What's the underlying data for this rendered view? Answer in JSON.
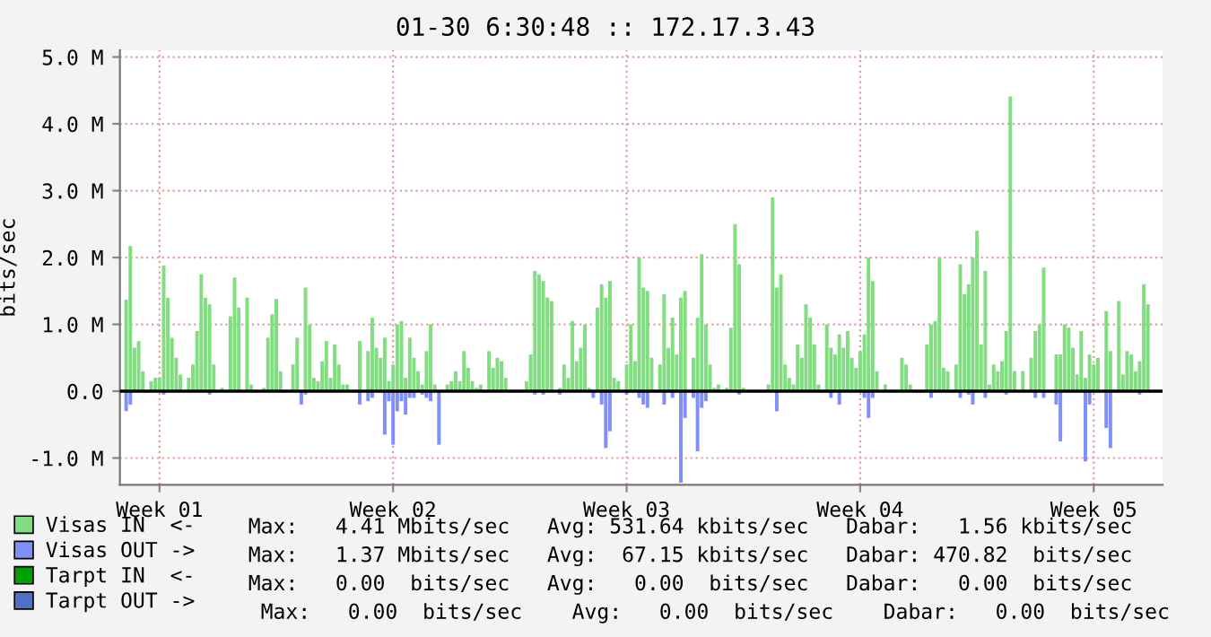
{
  "chart_data": {
    "type": "bar",
    "title": "01-30 6:30:48 :: 172.17.3.43",
    "ylabel": "bits/sec",
    "categories": [
      null,
      null,
      null,
      null,
      null,
      null,
      null,
      null,
      null,
      "Week 01",
      null,
      null,
      null,
      null,
      null,
      null,
      null,
      null,
      null,
      null,
      null,
      null,
      null,
      null,
      null,
      null,
      null,
      null,
      null,
      null,
      null,
      null,
      null,
      null,
      null,
      null,
      null,
      null,
      null,
      null,
      null,
      null,
      null,
      null,
      null,
      null,
      null,
      null,
      null,
      null,
      null,
      null,
      null,
      null,
      null,
      null,
      null,
      null,
      null,
      null,
      null,
      null,
      null,
      null,
      null,
      "Week 02",
      null,
      null,
      null,
      null,
      null,
      null,
      null,
      null,
      null,
      null,
      null,
      null,
      null,
      null,
      null,
      null,
      null,
      null,
      null,
      null,
      null,
      null,
      null,
      null,
      null,
      null,
      null,
      null,
      null,
      null,
      null,
      null,
      null,
      null,
      null,
      null,
      null,
      null,
      null,
      null,
      null,
      null,
      null,
      null,
      null,
      null,
      null,
      null,
      null,
      null,
      null,
      null,
      null,
      null,
      null,
      "Week 03",
      null,
      null,
      null,
      null,
      null,
      null,
      null,
      null,
      null,
      null,
      null,
      null,
      null,
      null,
      null,
      null,
      null,
      null,
      null,
      null,
      null,
      null,
      null,
      null,
      null,
      null,
      null,
      null,
      null,
      null,
      null,
      null,
      null,
      null,
      null,
      null,
      null,
      null,
      null,
      null,
      null,
      null,
      null,
      null,
      null,
      null,
      null,
      null,
      null,
      null,
      null,
      null,
      null,
      null,
      null,
      "Week 04",
      null,
      null,
      null,
      null,
      null,
      null,
      null,
      null,
      null,
      null,
      null,
      null,
      null,
      null,
      null,
      null,
      null,
      null,
      null,
      null,
      null,
      null,
      null,
      null,
      null,
      null,
      null,
      null,
      null,
      null,
      null,
      null,
      null,
      null,
      null,
      null,
      null,
      null,
      null,
      null,
      null,
      null,
      null,
      null,
      null,
      null,
      null,
      null,
      null,
      null,
      null,
      null,
      null,
      null,
      null,
      "Week 05",
      null,
      null,
      null,
      null,
      null,
      null,
      null,
      null,
      null,
      null,
      null,
      null,
      null,
      null,
      null,
      null
    ],
    "ylim": [
      -1.4,
      5.1
    ],
    "yticks": [
      {
        "value": -1,
        "label": "-1.0 M"
      },
      {
        "value": 0,
        "label": "0.0"
      },
      {
        "value": 1,
        "label": "1.0 M"
      },
      {
        "value": 2,
        "label": "2.0 M"
      },
      {
        "value": 3,
        "label": "3.0 M"
      },
      {
        "value": 4,
        "label": "4.0 M"
      },
      {
        "value": 5,
        "label": "5.0 M"
      }
    ],
    "grid": true,
    "legend": "bottom left",
    "ref_lines": [
      {
        "axis": "y",
        "value": 0,
        "color": "#000000"
      }
    ],
    "series": [
      {
        "name": "Visas IN  <-",
        "color": "#80dd80",
        "values": [
          null,
          1.37,
          2.17,
          0.65,
          0.75,
          0.3,
          null,
          0.15,
          0.2,
          0.2,
          1.88,
          1.4,
          0.8,
          0.5,
          0.25,
          null,
          0.2,
          0.4,
          0.9,
          1.75,
          1.4,
          1.3,
          0.4,
          null,
          0.05,
          null,
          1.12,
          1.7,
          1.25,
          null,
          1.4,
          0.1,
          null,
          null,
          0.05,
          0.8,
          1.15,
          1.38,
          0.3,
          null,
          null,
          0.4,
          0.8,
          null,
          1.55,
          1.0,
          0.2,
          0.15,
          0.45,
          0.75,
          0.2,
          0.7,
          0.4,
          0.1,
          0.1,
          null,
          null,
          0.75,
          null,
          0.6,
          1.1,
          0.65,
          0.5,
          0.8,
          0.15,
          0.4,
          1.0,
          1.05,
          0.2,
          0.8,
          0.5,
          0.3,
          0.1,
          0.6,
          1.0,
          0.1,
          null,
          null,
          0.1,
          0.15,
          0.3,
          0.15,
          0.6,
          0.35,
          0.15,
          0.05,
          0.1,
          null,
          0.6,
          0.35,
          0.5,
          0.45,
          0.2,
          null,
          null,
          null,
          null,
          0.15,
          0.55,
          1.8,
          1.75,
          1.65,
          1.4,
          1.35,
          null,
          0.05,
          0.4,
          0.2,
          1.05,
          0.45,
          0.65,
          1.0,
          0.05,
          null,
          1.25,
          1.6,
          1.4,
          1.65,
          0.2,
          0.15,
          null,
          0.4,
          1.0,
          0.45,
          2.0,
          1.55,
          1.5,
          0.5,
          null,
          0.4,
          1.45,
          0.65,
          1.1,
          0.55,
          1.4,
          1.5,
          null,
          0.5,
          1.1,
          2.05,
          1.0,
          0.4,
          0.05,
          0.1,
          null,
          0.05,
          0.95,
          2.5,
          1.9,
          0.05,
          null,
          null,
          null,
          null,
          null,
          0.1,
          2.9,
          1.55,
          1.75,
          0.4,
          0.2,
          0.1,
          0.7,
          0.5,
          1.3,
          1.1,
          0.7,
          0.1,
          null,
          1.0,
          0.65,
          0.55,
          0.85,
          0.65,
          0.9,
          0.5,
          0.35,
          0.6,
          0.85,
          2.0,
          1.65,
          0.3,
          null,
          0.1,
          null,
          null,
          null,
          0.5,
          0.4,
          0.1,
          null,
          null,
          null,
          0.7,
          1.0,
          1.05,
          2.0,
          0.35,
          0.3,
          null,
          0.4,
          1.9,
          1.45,
          1.6,
          2.0,
          2.4,
          0.7,
          1.8,
          0.1,
          0.4,
          0.3,
          0.45,
          0.9,
          4.41,
          0.3,
          null,
          0.3,
          null,
          0.5,
          0.9,
          1.0,
          1.85,
          null,
          null,
          0.55,
          0.55,
          1.0,
          0.95,
          0.65,
          0.25,
          0.9,
          0.2,
          0.55,
          0.4,
          0.5,
          null,
          1.2,
          0.6,
          null,
          1.35,
          0.25,
          0.6,
          0.55,
          0.3,
          0.45,
          1.6,
          1.3,
          null,
          null,
          null
        ]
      },
      {
        "name": "Visas OUT ->",
        "color": "#8090f8",
        "values": [
          null,
          -0.3,
          -0.2,
          null,
          null,
          null,
          null,
          null,
          null,
          null,
          -0.05,
          null,
          null,
          null,
          null,
          null,
          null,
          null,
          null,
          null,
          null,
          -0.05,
          null,
          null,
          null,
          null,
          null,
          null,
          null,
          null,
          null,
          null,
          null,
          null,
          null,
          null,
          null,
          null,
          null,
          null,
          null,
          null,
          null,
          -0.2,
          -0.05,
          null,
          null,
          null,
          null,
          null,
          null,
          null,
          null,
          null,
          null,
          null,
          null,
          -0.2,
          null,
          -0.15,
          -0.1,
          null,
          null,
          -0.65,
          -0.15,
          -0.8,
          -0.3,
          -0.15,
          -0.35,
          -0.1,
          -0.1,
          null,
          -0.05,
          -0.1,
          -0.15,
          null,
          -0.8,
          null,
          null,
          null,
          null,
          null,
          null,
          null,
          null,
          null,
          null,
          null,
          null,
          null,
          null,
          null,
          null,
          null,
          null,
          null,
          null,
          null,
          null,
          -0.05,
          null,
          -0.05,
          null,
          null,
          null,
          -0.05,
          null,
          null,
          null,
          null,
          null,
          null,
          null,
          -0.1,
          null,
          -0.2,
          -0.85,
          -0.6,
          null,
          null,
          null,
          -0.05,
          null,
          null,
          -0.1,
          -0.2,
          -0.25,
          null,
          null,
          null,
          -0.2,
          null,
          -0.1,
          null,
          -1.37,
          -0.4,
          null,
          -0.1,
          -0.9,
          -0.25,
          -0.15,
          null,
          null,
          null,
          null,
          null,
          null,
          null,
          -0.05,
          null,
          null,
          null,
          null,
          null,
          null,
          null,
          null,
          -0.3,
          null,
          null,
          null,
          null,
          null,
          null,
          null,
          null,
          null,
          null,
          null,
          null,
          -0.1,
          null,
          -0.2,
          null,
          null,
          null,
          null,
          null,
          -0.1,
          -0.4,
          -0.1,
          null,
          null,
          null,
          null,
          null,
          null,
          null,
          null,
          null,
          null,
          null,
          null,
          null,
          -0.1,
          null,
          null,
          null,
          null,
          null,
          null,
          -0.1,
          null,
          -0.05,
          -0.2,
          null,
          null,
          -0.1,
          null,
          null,
          null,
          null,
          -0.05,
          null,
          null,
          null,
          null,
          null,
          null,
          -0.1,
          null,
          -0.1,
          null,
          null,
          -0.2,
          -0.75,
          null,
          null,
          null,
          null,
          null,
          -1.05,
          -0.2,
          null,
          null,
          null,
          -0.55,
          -0.85,
          null,
          null,
          null,
          null,
          null,
          null,
          -0.05,
          null,
          null,
          null,
          null,
          null
        ]
      },
      {
        "name": "Tarpt IN  <-",
        "color": "#00a000",
        "values": [
          0,
          0,
          0,
          0,
          0,
          0,
          0,
          0,
          0,
          0,
          0,
          0,
          0,
          0,
          0,
          0,
          0,
          0,
          0,
          0,
          0,
          0,
          0,
          0,
          0,
          0,
          0,
          0,
          0,
          0,
          0,
          0,
          0,
          0,
          0,
          0,
          0,
          0,
          0,
          0,
          0,
          0,
          0,
          0,
          0,
          0,
          0,
          0,
          0,
          0,
          0,
          0,
          0,
          0,
          0,
          0,
          0,
          0,
          0,
          0,
          0,
          0,
          0,
          0,
          0,
          0,
          0,
          0,
          0,
          0,
          0,
          0,
          0,
          0,
          0,
          0,
          0,
          0,
          0,
          0,
          0,
          0,
          0,
          0,
          0,
          0,
          0,
          0,
          0,
          0,
          0,
          0,
          0,
          0,
          0,
          0,
          0,
          0,
          0,
          0,
          0,
          0,
          0,
          0,
          0,
          0,
          0,
          0,
          0,
          0,
          0,
          0,
          0,
          0,
          0,
          0,
          0,
          0,
          0,
          0,
          0,
          0,
          0,
          0,
          0,
          0,
          0,
          0,
          0,
          0,
          0,
          0,
          0,
          0,
          0,
          0,
          0,
          0,
          0,
          0,
          0,
          0,
          0,
          0,
          0,
          0,
          0,
          0,
          0,
          0,
          0,
          0,
          0,
          0,
          0,
          0,
          0,
          0,
          0,
          0,
          0,
          0,
          0,
          0,
          0,
          0,
          0,
          0,
          0,
          0,
          0,
          0,
          0,
          0,
          0,
          0,
          0,
          0,
          0,
          0,
          0,
          0,
          0,
          0,
          0,
          0,
          0,
          0,
          0,
          0,
          0,
          0,
          0,
          0,
          0,
          0,
          0,
          0,
          0,
          0,
          0,
          0,
          0,
          0,
          0,
          0,
          0,
          0,
          0,
          0,
          0,
          0,
          0,
          0,
          0,
          0,
          0,
          0,
          0,
          0,
          0,
          0,
          0,
          0,
          0,
          0,
          0,
          0,
          0,
          0,
          0,
          0,
          0,
          0,
          0,
          0,
          0,
          0,
          0,
          0,
          0,
          0,
          0,
          0,
          0,
          0,
          0,
          0,
          0,
          0
        ]
      },
      {
        "name": "Tarpt OUT ->",
        "color": "#4f6fc8",
        "values": [
          0,
          0,
          0,
          0,
          0,
          0,
          0,
          0,
          0,
          0,
          0,
          0,
          0,
          0,
          0,
          0,
          0,
          0,
          0,
          0,
          0,
          0,
          0,
          0,
          0,
          0,
          0,
          0,
          0,
          0,
          0,
          0,
          0,
          0,
          0,
          0,
          0,
          0,
          0,
          0,
          0,
          0,
          0,
          0,
          0,
          0,
          0,
          0,
          0,
          0,
          0,
          0,
          0,
          0,
          0,
          0,
          0,
          0,
          0,
          0,
          0,
          0,
          0,
          0,
          0,
          0,
          0,
          0,
          0,
          0,
          0,
          0,
          0,
          0,
          0,
          0,
          0,
          0,
          0,
          0,
          0,
          0,
          0,
          0,
          0,
          0,
          0,
          0,
          0,
          0,
          0,
          0,
          0,
          0,
          0,
          0,
          0,
          0,
          0,
          0,
          0,
          0,
          0,
          0,
          0,
          0,
          0,
          0,
          0,
          0,
          0,
          0,
          0,
          0,
          0,
          0,
          0,
          0,
          0,
          0,
          0,
          0,
          0,
          0,
          0,
          0,
          0,
          0,
          0,
          0,
          0,
          0,
          0,
          0,
          0,
          0,
          0,
          0,
          0,
          0,
          0,
          0,
          0,
          0,
          0,
          0,
          0,
          0,
          0,
          0,
          0,
          0,
          0,
          0,
          0,
          0,
          0,
          0,
          0,
          0,
          0,
          0,
          0,
          0,
          0,
          0,
          0,
          0,
          0,
          0,
          0,
          0,
          0,
          0,
          0,
          0,
          0,
          0,
          0,
          0,
          0,
          0,
          0,
          0,
          0,
          0,
          0,
          0,
          0,
          0,
          0,
          0,
          0,
          0,
          0,
          0,
          0,
          0,
          0,
          0,
          0,
          0,
          0,
          0,
          0,
          0,
          0,
          0,
          0,
          0,
          0,
          0,
          0,
          0,
          0,
          0,
          0,
          0,
          0,
          0,
          0,
          0,
          0,
          0,
          0,
          0,
          0,
          0,
          0,
          0,
          0,
          0,
          0,
          0,
          0,
          0,
          0,
          0,
          0,
          0,
          0,
          0,
          0,
          0,
          0,
          0,
          0,
          0,
          0,
          0
        ]
      }
    ],
    "annotations": [
      "Max:   4.41 Mbits/sec   Avg: 531.64 kbits/sec   Dabar:   1.56 kbits/sec",
      "Max:   1.37 Mbits/sec   Avg:  67.15 kbits/sec   Dabar: 470.82  bits/sec",
      "Max:   0.00  bits/sec   Avg:   0.00  bits/sec   Dabar:   0.00  bits/sec",
      " Max:   0.00  bits/sec    Avg:   0.00  bits/sec    Dabar:   0.00  bits/sec"
    ]
  }
}
